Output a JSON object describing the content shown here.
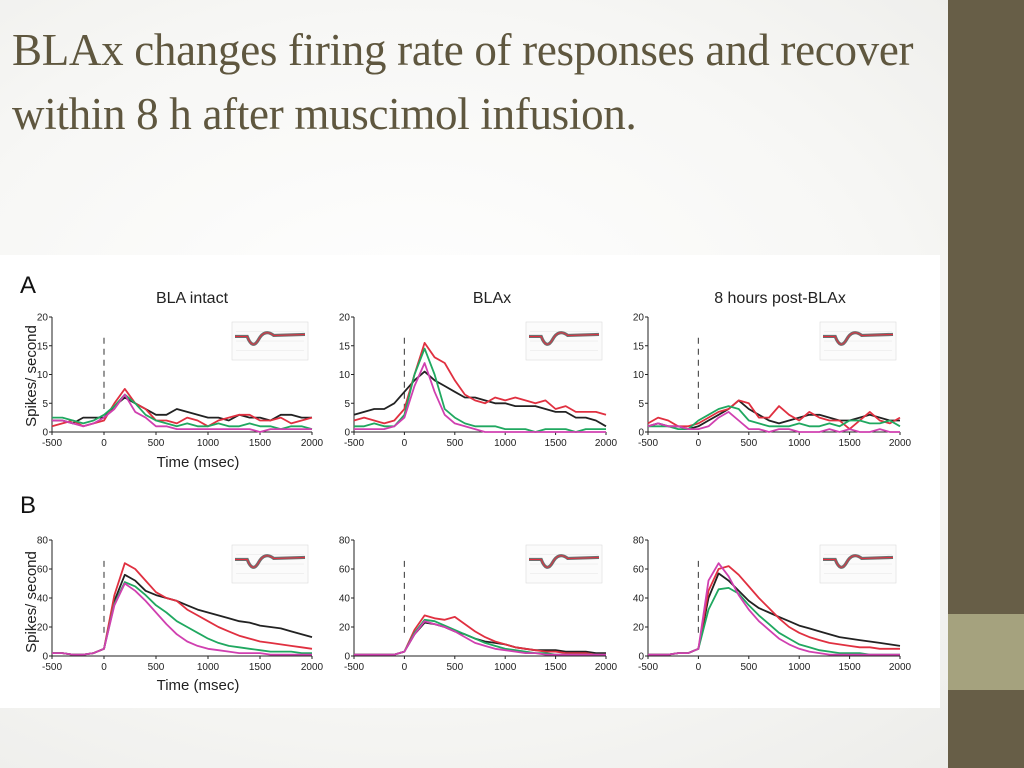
{
  "slide": {
    "title": "BLAx changes firing rate of responses and recover within 8 h after muscimol infusion.",
    "theme_colors": {
      "sidebar": "#675e47",
      "sidebar_accent": "#a5a27e",
      "title_text": "#5f573f"
    }
  },
  "figure": {
    "row_labels": [
      "A",
      "B"
    ],
    "column_titles": [
      "BLA intact",
      "BLAx",
      "8 hours post-BLAx"
    ],
    "ylabel": "Spikes/ second",
    "xlabel": "Time (msec)",
    "series_colors": [
      "#222222",
      "#e03040",
      "#20a860",
      "#d040b0"
    ]
  },
  "chart_data": [
    {
      "type": "line",
      "panel": "A1",
      "title": "BLA intact",
      "xlabel": "Time (msec)",
      "ylabel": "Spikes/ second",
      "xlim": [
        -500,
        2000
      ],
      "ylim": [
        0,
        20
      ],
      "xticks": [
        "-500",
        "0",
        "500",
        "1000",
        "1500",
        "2000"
      ],
      "yticks": [
        "0",
        "5",
        "10",
        "15",
        "20"
      ],
      "stimulus_onset": 0,
      "x": [
        -500,
        -400,
        -300,
        -200,
        -100,
        0,
        100,
        200,
        300,
        400,
        500,
        600,
        700,
        800,
        900,
        1000,
        1100,
        1200,
        1300,
        1400,
        1500,
        1600,
        1700,
        1800,
        1900,
        2000
      ],
      "series": [
        {
          "color": "#222222",
          "values": [
            2,
            2,
            1.5,
            2.5,
            2.5,
            2.5,
            4.5,
            6,
            5,
            4,
            3,
            3,
            4,
            3.5,
            3,
            2.5,
            2.5,
            2,
            3,
            2.5,
            2.5,
            2,
            3,
            3,
            2.5,
            2.5
          ]
        },
        {
          "color": "#e03040",
          "values": [
            1,
            1.5,
            2,
            1,
            1.5,
            2,
            5,
            7.5,
            5,
            4,
            2,
            2,
            1.5,
            2.5,
            2,
            1,
            2,
            2.5,
            3,
            3,
            2,
            2,
            2.5,
            1.5,
            2,
            2.5
          ]
        },
        {
          "color": "#20a860",
          "values": [
            2.5,
            2.5,
            2,
            1.5,
            2,
            3,
            4.5,
            6.5,
            5,
            3,
            2,
            1.5,
            1,
            1.5,
            1,
            1,
            1.5,
            1,
            1,
            1.5,
            1,
            1,
            0.5,
            1,
            1,
            0.5
          ]
        },
        {
          "color": "#d040b0",
          "values": [
            2,
            2,
            1.5,
            1,
            1.5,
            2.5,
            4,
            6.5,
            3.5,
            2.5,
            1,
            1,
            0.5,
            0.5,
            0.5,
            0.5,
            0.5,
            0.5,
            0.5,
            0.5,
            0,
            0.5,
            0.5,
            0.5,
            0.5,
            0.5
          ]
        }
      ]
    },
    {
      "type": "line",
      "panel": "A2",
      "title": "BLAx",
      "xlabel": "",
      "ylabel": "",
      "xlim": [
        -500,
        2000
      ],
      "ylim": [
        0,
        20
      ],
      "xticks": [
        "-500",
        "0",
        "500",
        "1000",
        "1500",
        "2000"
      ],
      "yticks": [
        "0",
        "5",
        "10",
        "15",
        "20"
      ],
      "stimulus_onset": 0,
      "x": [
        -500,
        -400,
        -300,
        -200,
        -100,
        0,
        100,
        200,
        300,
        400,
        500,
        600,
        700,
        800,
        900,
        1000,
        1100,
        1200,
        1300,
        1400,
        1500,
        1600,
        1700,
        1800,
        1900,
        2000
      ],
      "series": [
        {
          "color": "#222222",
          "values": [
            3,
            3.5,
            4,
            4,
            5,
            7,
            9,
            10.5,
            9,
            8,
            7,
            6,
            6,
            5.5,
            5,
            5,
            4.5,
            4.5,
            4.5,
            4,
            3.5,
            3.5,
            2.5,
            2.5,
            2,
            1
          ]
        },
        {
          "color": "#e03040",
          "values": [
            2,
            2.5,
            2,
            1.5,
            2,
            4,
            10,
            15.5,
            13,
            12,
            9,
            6.5,
            5.5,
            5,
            6,
            5.5,
            6,
            5.5,
            5,
            5.5,
            4,
            4.5,
            3.5,
            3.5,
            3.5,
            3
          ]
        },
        {
          "color": "#20a860",
          "values": [
            1,
            1,
            1.5,
            1,
            1,
            3,
            10,
            14.5,
            10,
            4,
            2.5,
            1.5,
            1,
            1,
            1,
            0.5,
            0.5,
            0.5,
            0,
            0.5,
            0.5,
            0.5,
            0,
            0.5,
            0.5,
            0.5
          ]
        },
        {
          "color": "#d040b0",
          "values": [
            0.5,
            0.5,
            0.5,
            0.5,
            1,
            2.5,
            8,
            12,
            7,
            3,
            1.5,
            1,
            0.5,
            0,
            0,
            0,
            0,
            0,
            0,
            0,
            0,
            0,
            0,
            0,
            0,
            0
          ]
        }
      ]
    },
    {
      "type": "line",
      "panel": "A3",
      "title": "8 hours post-BLAx",
      "xlabel": "",
      "ylabel": "",
      "xlim": [
        -500,
        2000
      ],
      "ylim": [
        0,
        20
      ],
      "xticks": [
        "-500",
        "0",
        "500",
        "1000",
        "1500",
        "2000"
      ],
      "yticks": [
        "0",
        "5",
        "10",
        "15",
        "20"
      ],
      "stimulus_onset": 0,
      "x": [
        -500,
        -400,
        -300,
        -200,
        -100,
        0,
        100,
        200,
        300,
        400,
        500,
        600,
        700,
        800,
        900,
        1000,
        1100,
        1200,
        1300,
        1400,
        1500,
        1600,
        1700,
        1800,
        1900,
        2000
      ],
      "series": [
        {
          "color": "#222222",
          "values": [
            1,
            1.5,
            1,
            1,
            0.5,
            1,
            2,
            3,
            4,
            5.5,
            4,
            3,
            2,
            1.5,
            2,
            2.5,
            3,
            3,
            2.5,
            2,
            2,
            2.5,
            3,
            2.5,
            2,
            2
          ]
        },
        {
          "color": "#e03040",
          "values": [
            1.5,
            2.5,
            2,
            1,
            1,
            1.5,
            2.5,
            3.5,
            4,
            5.5,
            5,
            2.5,
            2.5,
            4.5,
            3,
            2,
            3.5,
            2.5,
            2,
            2,
            0.5,
            2,
            3.5,
            2,
            1.5,
            2.5
          ]
        },
        {
          "color": "#20a860",
          "values": [
            1,
            1,
            1,
            0.5,
            0.5,
            2,
            3,
            4,
            4.5,
            4,
            2,
            1.5,
            1,
            1,
            1,
            1.5,
            1,
            1,
            1.5,
            1,
            2,
            2,
            1.5,
            1.5,
            2,
            1
          ]
        },
        {
          "color": "#d040b0",
          "values": [
            1,
            1.5,
            1,
            1,
            0.5,
            0.5,
            1,
            2.5,
            3.5,
            2,
            0.5,
            0.5,
            0,
            0.5,
            0.5,
            0,
            0,
            0,
            0.5,
            0,
            0.5,
            0,
            0,
            0.5,
            0,
            0
          ]
        }
      ]
    },
    {
      "type": "line",
      "panel": "B1",
      "title": "",
      "xlabel": "Time (msec)",
      "ylabel": "Spikes/ second",
      "xlim": [
        -500,
        2000
      ],
      "ylim": [
        0,
        80
      ],
      "xticks": [
        "-500",
        "0",
        "500",
        "1000",
        "1500",
        "2000"
      ],
      "yticks": [
        "0",
        "20",
        "40",
        "60",
        "80"
      ],
      "stimulus_onset": 0,
      "x": [
        -500,
        -400,
        -300,
        -200,
        -100,
        0,
        100,
        200,
        300,
        400,
        500,
        600,
        700,
        800,
        900,
        1000,
        1100,
        1200,
        1300,
        1400,
        1500,
        1600,
        1700,
        1800,
        1900,
        2000
      ],
      "series": [
        {
          "color": "#222222",
          "values": [
            2,
            2,
            1,
            1,
            2,
            5,
            38,
            56,
            52,
            45,
            42,
            40,
            38,
            35,
            32,
            30,
            28,
            26,
            24,
            23,
            21,
            20,
            19,
            17,
            15,
            13
          ]
        },
        {
          "color": "#e03040",
          "values": [
            2,
            2,
            1,
            1,
            2,
            5,
            42,
            64,
            60,
            52,
            44,
            40,
            38,
            32,
            28,
            24,
            20,
            17,
            14,
            12,
            10,
            9,
            8,
            7,
            6,
            5
          ]
        },
        {
          "color": "#20a860",
          "values": [
            2,
            2,
            1,
            1,
            2,
            5,
            36,
            51,
            48,
            42,
            35,
            30,
            24,
            20,
            16,
            12,
            9,
            7,
            6,
            5,
            4,
            3,
            3,
            3,
            2,
            2
          ]
        },
        {
          "color": "#d040b0",
          "values": [
            2,
            2,
            1,
            1,
            2,
            5,
            35,
            50,
            45,
            38,
            30,
            22,
            15,
            10,
            7,
            5,
            4,
            3,
            2,
            2,
            2,
            1,
            1,
            1,
            1,
            1
          ]
        }
      ]
    },
    {
      "type": "line",
      "panel": "B2",
      "title": "",
      "xlabel": "",
      "ylabel": "",
      "xlim": [
        -500,
        2000
      ],
      "ylim": [
        0,
        80
      ],
      "xticks": [
        "-500",
        "0",
        "500",
        "1000",
        "1500",
        "2000"
      ],
      "yticks": [
        "0",
        "20",
        "40",
        "60",
        "80"
      ],
      "stimulus_onset": 0,
      "x": [
        -500,
        -400,
        -300,
        -200,
        -100,
        0,
        100,
        200,
        300,
        400,
        500,
        600,
        700,
        800,
        900,
        1000,
        1100,
        1200,
        1300,
        1400,
        1500,
        1600,
        1700,
        1800,
        1900,
        2000
      ],
      "series": [
        {
          "color": "#222222",
          "values": [
            1,
            1,
            1,
            1,
            1,
            3,
            15,
            23,
            22,
            20,
            17,
            15,
            12,
            10,
            9,
            8,
            6,
            5,
            4,
            4,
            4,
            3,
            3,
            3,
            2,
            2
          ]
        },
        {
          "color": "#e03040",
          "values": [
            1,
            1,
            1,
            1,
            1,
            3,
            18,
            28,
            26,
            25,
            27,
            22,
            17,
            13,
            10,
            8,
            6,
            5,
            4,
            3,
            3,
            2,
            2,
            2,
            1,
            1
          ]
        },
        {
          "color": "#20a860",
          "values": [
            1,
            1,
            1,
            1,
            1,
            3,
            16,
            25,
            24,
            21,
            18,
            15,
            12,
            9,
            7,
            5,
            4,
            3,
            2,
            2,
            1,
            1,
            1,
            1,
            1,
            1
          ]
        },
        {
          "color": "#d040b0",
          "values": [
            1,
            1,
            1,
            1,
            1,
            3,
            15,
            24,
            22,
            20,
            17,
            13,
            9,
            7,
            5,
            4,
            3,
            2,
            2,
            1,
            1,
            1,
            1,
            1,
            1,
            1
          ]
        }
      ]
    },
    {
      "type": "line",
      "panel": "B3",
      "title": "",
      "xlabel": "",
      "ylabel": "",
      "xlim": [
        -500,
        2000
      ],
      "ylim": [
        0,
        80
      ],
      "xticks": [
        "-500",
        "0",
        "500",
        "1000",
        "1500",
        "2000"
      ],
      "yticks": [
        "0",
        "20",
        "40",
        "60",
        "80"
      ],
      "stimulus_onset": 0,
      "x": [
        -500,
        -400,
        -300,
        -200,
        -100,
        0,
        100,
        200,
        300,
        400,
        500,
        600,
        700,
        800,
        900,
        1000,
        1100,
        1200,
        1300,
        1400,
        1500,
        1600,
        1700,
        1800,
        1900,
        2000
      ],
      "series": [
        {
          "color": "#222222",
          "values": [
            1,
            1,
            1,
            2,
            2,
            5,
            40,
            57,
            52,
            45,
            38,
            33,
            30,
            27,
            24,
            21,
            19,
            17,
            15,
            13,
            12,
            11,
            10,
            9,
            8,
            7
          ]
        },
        {
          "color": "#e03040",
          "values": [
            1,
            1,
            1,
            2,
            2,
            5,
            45,
            60,
            62,
            56,
            48,
            40,
            33,
            26,
            20,
            16,
            13,
            11,
            9,
            8,
            7,
            6,
            6,
            5,
            5,
            5
          ]
        },
        {
          "color": "#20a860",
          "values": [
            1,
            1,
            1,
            2,
            2,
            5,
            32,
            46,
            47,
            43,
            35,
            28,
            22,
            16,
            12,
            8,
            6,
            4,
            3,
            2,
            2,
            2,
            1,
            1,
            1,
            1
          ]
        },
        {
          "color": "#d040b0",
          "values": [
            1,
            1,
            1,
            2,
            2,
            5,
            52,
            64,
            55,
            42,
            32,
            24,
            18,
            12,
            8,
            5,
            3,
            2,
            1,
            1,
            1,
            1,
            1,
            1,
            1,
            1
          ]
        }
      ]
    }
  ]
}
